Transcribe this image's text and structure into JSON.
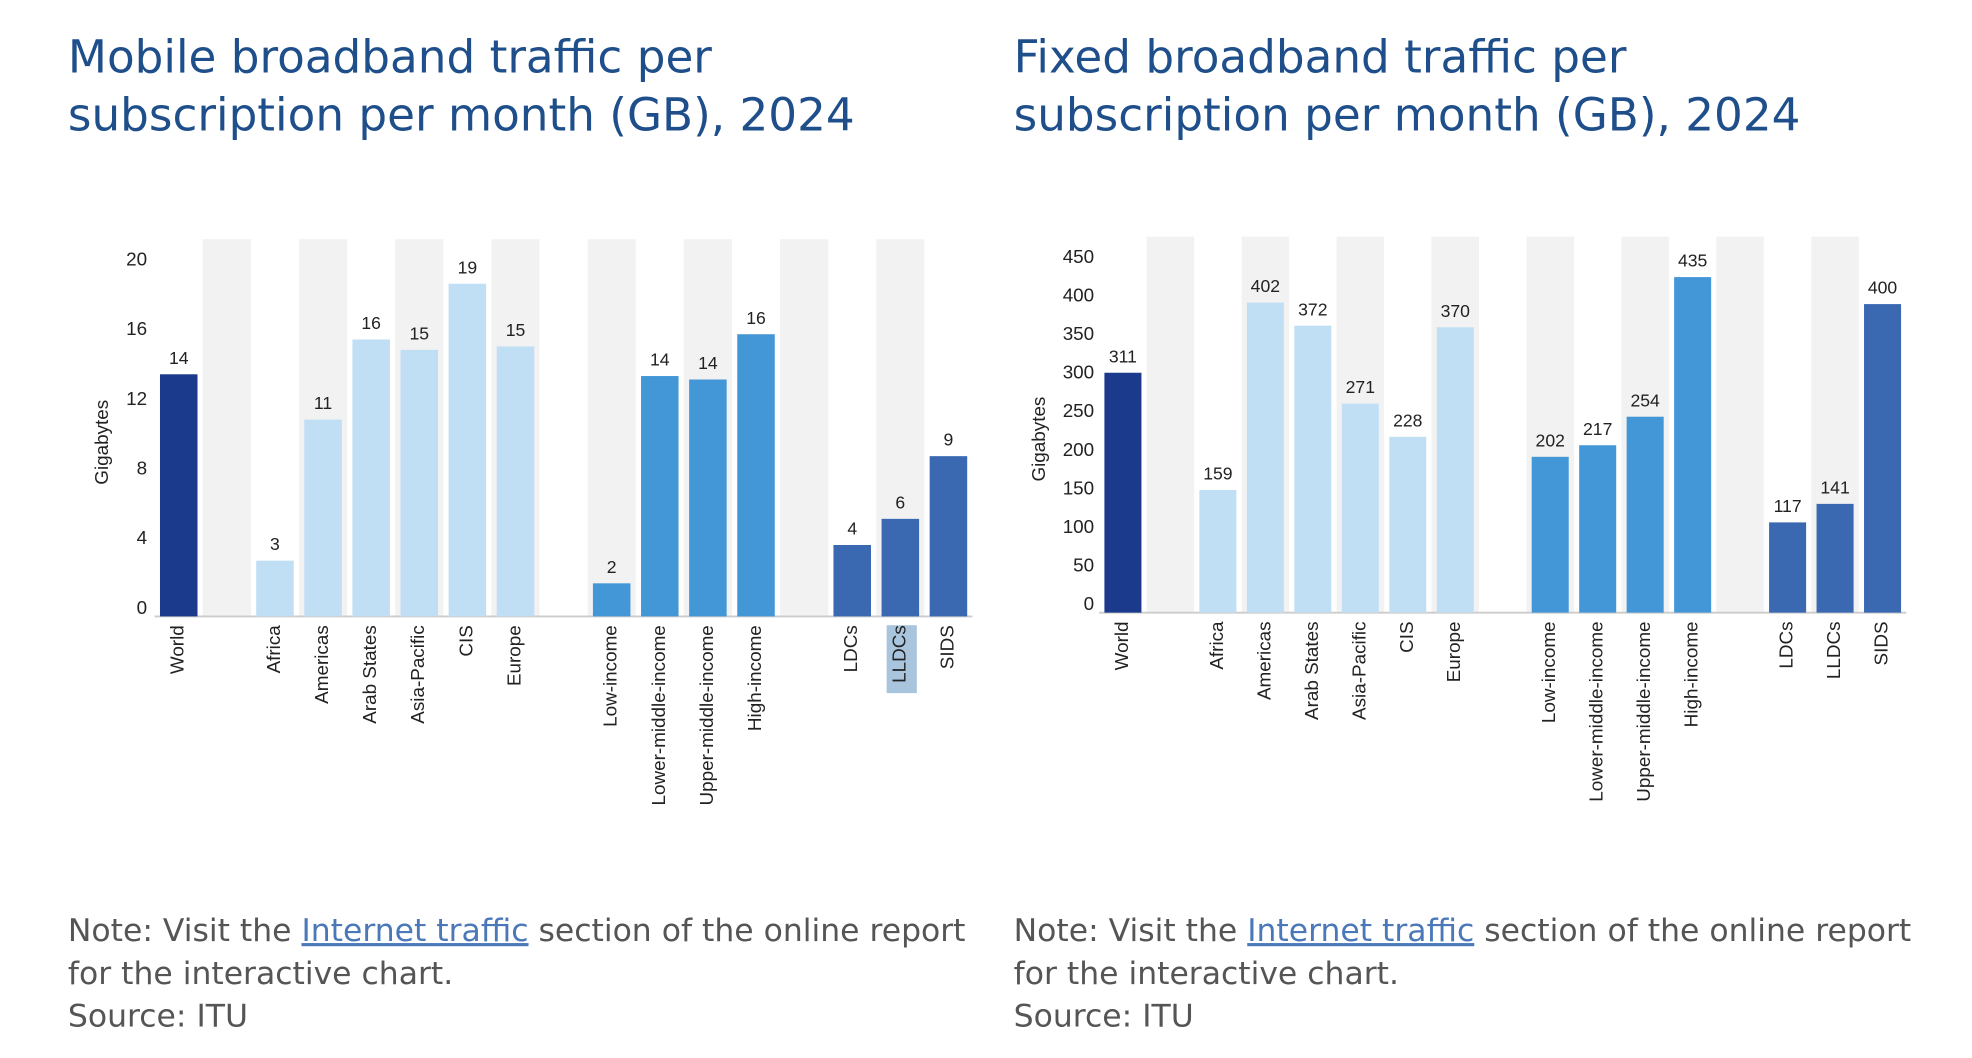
{
  "chart_data": [
    {
      "type": "bar",
      "title": [
        "Mobile broadband traffic per",
        "subscription per month (GB), 2024"
      ],
      "y_label": "Gigabytes",
      "categories": [
        "World",
        null,
        "Africa",
        "Americas",
        "Arab States",
        "Asia-Pacific",
        "CIS",
        "Europe",
        null,
        "Low-income",
        "Lower-middle-income",
        "Upper-middle-income",
        "High-income",
        null,
        "LDCs",
        "LLDCs",
        "SIDS"
      ],
      "values": [
        13.9,
        null,
        3.2,
        11.3,
        15.9,
        15.3,
        19.1,
        15.5,
        null,
        1.9,
        13.8,
        13.6,
        16.2,
        null,
        4.1,
        5.6,
        9.2
      ],
      "value_labels": [
        "14",
        null,
        "3",
        "11",
        "16",
        "15",
        "19",
        "15",
        null,
        "2",
        "14",
        "14",
        "16",
        null,
        "4",
        "6",
        "9"
      ],
      "colors": [
        "#1b3a8c",
        null,
        "#c0dff4",
        "#c0dff4",
        "#c0dff4",
        "#c0dff4",
        "#c0dff4",
        "#c0dff4",
        null,
        "#4497d6",
        "#4497d6",
        "#4497d6",
        "#4497d6",
        null,
        "#3a68b1",
        "#3a68b1",
        "#3a68b1"
      ],
      "ylim": [
        0,
        20
      ],
      "yticks": [
        0,
        4,
        8,
        12,
        16,
        20
      ]
    },
    {
      "type": "bar",
      "title": [
        "Fixed broadband traffic per",
        "subscription per month (GB), 2024"
      ],
      "y_label": "Gigabytes",
      "categories": [
        "World",
        null,
        "Africa",
        "Americas",
        "Arab States",
        "Asia-Pacific",
        "CIS",
        "Europe",
        null,
        "Low-income",
        "Lower-middle-income",
        "Upper-middle-income",
        "High-income",
        null,
        "LDCs",
        "LLDCs",
        "SIDS"
      ],
      "values": [
        311,
        null,
        159,
        402,
        372,
        271,
        228,
        370,
        null,
        202,
        217,
        254,
        435,
        null,
        117,
        141,
        400
      ],
      "colors": [
        "#1b3a8c",
        null,
        "#c0dff4",
        "#c0dff4",
        "#c0dff4",
        "#c0dff4",
        "#c0dff4",
        "#c0dff4",
        null,
        "#4497d6",
        "#4497d6",
        "#4497d6",
        "#4497d6",
        null,
        "#3a68b1",
        "#3a68b1",
        "#3a68b1"
      ],
      "ylim": [
        0,
        450
      ],
      "yticks": [
        0,
        50,
        100,
        150,
        200,
        250,
        300,
        350,
        400,
        450
      ]
    }
  ],
  "notes": [
    {
      "lines": [
        [
          "Note: Visit the ",
          "Internet traffic",
          " section of the online report"
        ],
        "for the interactive chart.",
        "Source: ITU"
      ]
    },
    {
      "lines": [
        [
          "Note: Visit the ",
          "Internet traffic",
          " section of the online report"
        ],
        "for the interactive chart.",
        "Source: ITU"
      ]
    }
  ]
}
